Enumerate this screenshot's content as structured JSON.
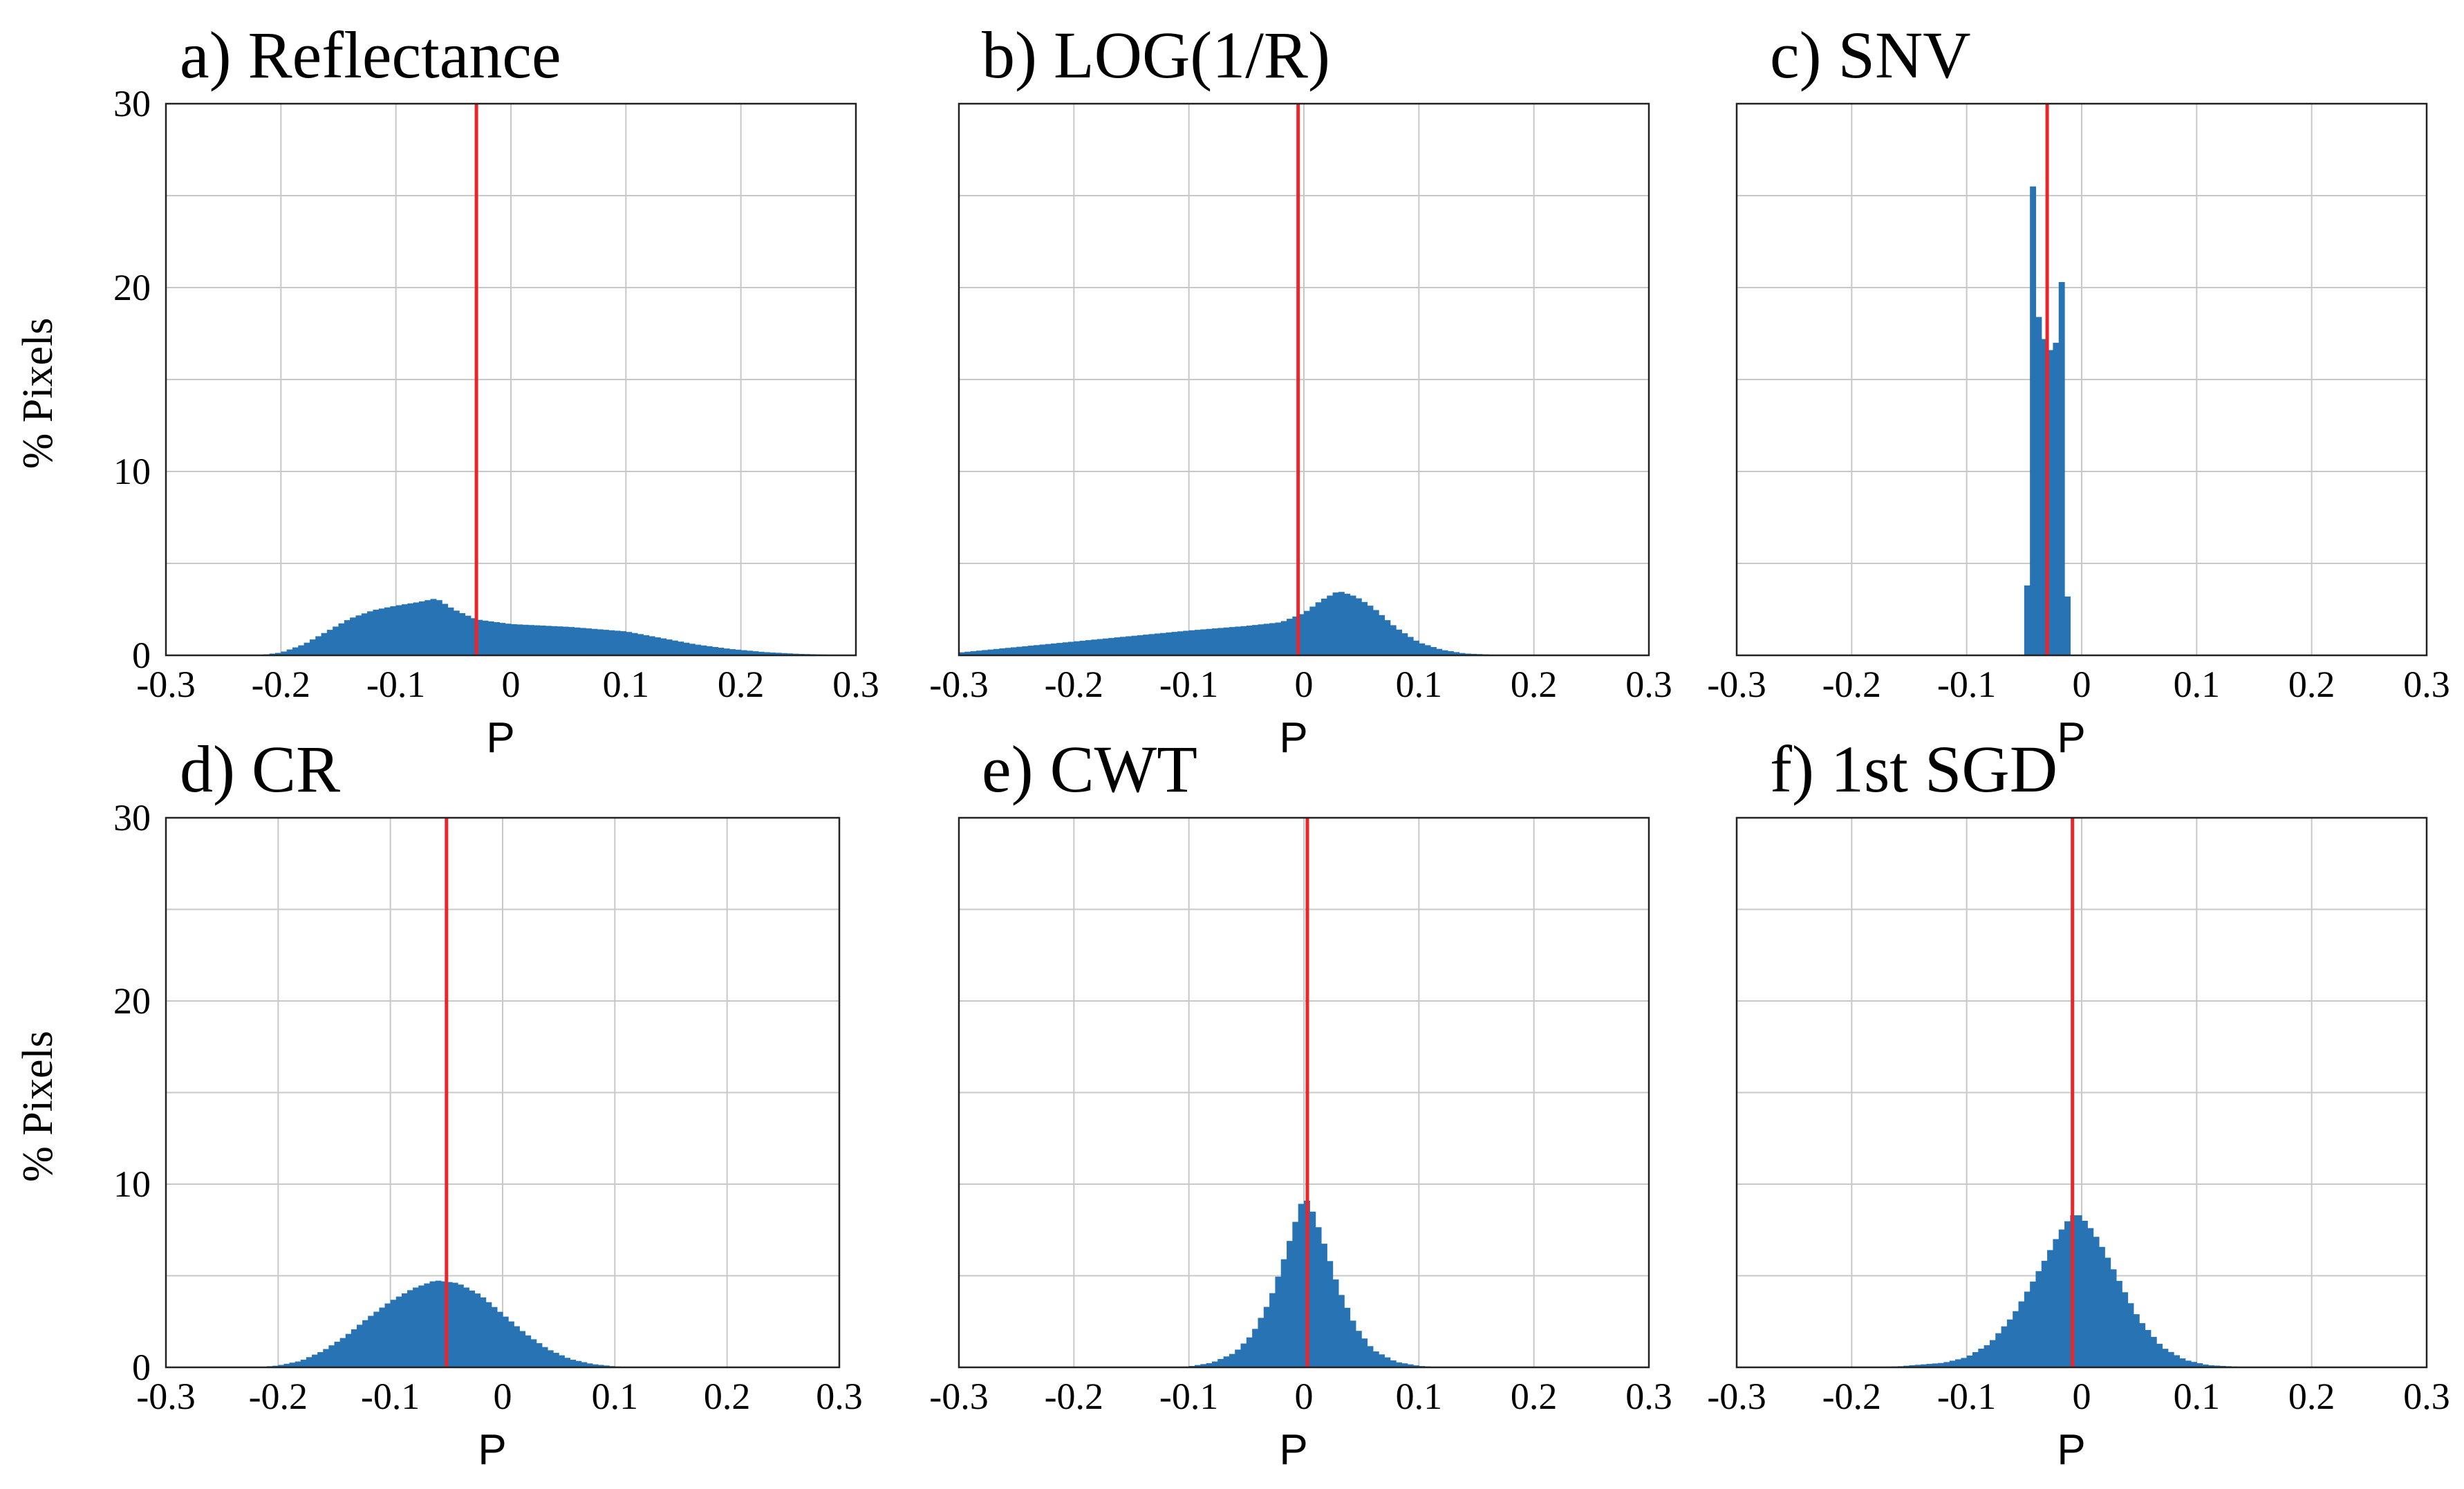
{
  "colors": {
    "bar": "#2873b4",
    "refline": "#e8262b",
    "grid": "#c8c8c8"
  },
  "chart_data": [
    {
      "type": "bar",
      "title": "a) Reflectance",
      "xlabel": "P",
      "ylabel": "% Pixels",
      "xlim": [
        -0.3,
        0.3
      ],
      "ylim": [
        0,
        30
      ],
      "xticks": [
        "-0.3",
        "-0.2",
        "-0.1",
        "0",
        "0.1",
        "0.2",
        "0.3"
      ],
      "yticks": [
        "0",
        "10",
        "20",
        "30"
      ],
      "show_yticks": true,
      "bin_width": 0.005,
      "refline_x": -0.03,
      "profile": [
        [
          -0.22,
          0
        ],
        [
          -0.2,
          0.15
        ],
        [
          -0.18,
          0.6
        ],
        [
          -0.16,
          1.3
        ],
        [
          -0.14,
          2.0
        ],
        [
          -0.12,
          2.45
        ],
        [
          -0.1,
          2.7
        ],
        [
          -0.08,
          2.9
        ],
        [
          -0.065,
          3.1
        ],
        [
          -0.05,
          2.5
        ],
        [
          -0.03,
          1.95
        ],
        [
          0.0,
          1.7
        ],
        [
          0.05,
          1.55
        ],
        [
          0.1,
          1.3
        ],
        [
          0.13,
          0.95
        ],
        [
          0.16,
          0.6
        ],
        [
          0.19,
          0.35
        ],
        [
          0.22,
          0.18
        ],
        [
          0.25,
          0.08
        ],
        [
          0.28,
          0.03
        ],
        [
          0.3,
          0.01
        ]
      ]
    },
    {
      "type": "bar",
      "title": "b) LOG(1/R)",
      "xlabel": "P",
      "ylabel": "",
      "xlim": [
        -0.3,
        0.3
      ],
      "ylim": [
        0,
        30
      ],
      "xticks": [
        "-0.3",
        "-0.2",
        "-0.1",
        "0",
        "0.1",
        "0.2",
        "0.3"
      ],
      "yticks": [
        "0",
        "10",
        "20",
        "30"
      ],
      "show_yticks": false,
      "bin_width": 0.005,
      "refline_x": -0.005,
      "profile": [
        [
          -0.3,
          0.15
        ],
        [
          -0.25,
          0.45
        ],
        [
          -0.2,
          0.75
        ],
        [
          -0.15,
          1.05
        ],
        [
          -0.1,
          1.35
        ],
        [
          -0.05,
          1.6
        ],
        [
          -0.02,
          1.8
        ],
        [
          0.0,
          2.3
        ],
        [
          0.015,
          3.0
        ],
        [
          0.03,
          3.5
        ],
        [
          0.045,
          3.2
        ],
        [
          0.06,
          2.6
        ],
        [
          0.08,
          1.5
        ],
        [
          0.1,
          0.7
        ],
        [
          0.12,
          0.3
        ],
        [
          0.14,
          0.1
        ],
        [
          0.17,
          0.02
        ],
        [
          0.2,
          0
        ]
      ]
    },
    {
      "type": "bar",
      "title": "c) SNV",
      "xlabel": "P",
      "ylabel": "",
      "xlim": [
        -0.3,
        0.3
      ],
      "ylim": [
        0,
        30
      ],
      "xticks": [
        "-0.3",
        "-0.2",
        "-0.1",
        "0",
        "0.1",
        "0.2",
        "0.3"
      ],
      "yticks": [
        "0",
        "10",
        "20",
        "30"
      ],
      "show_yticks": false,
      "bin_width": 0.005,
      "refline_x": -0.03,
      "bins": [
        {
          "x0": -0.05,
          "x1": -0.045,
          "y": 3.8
        },
        {
          "x0": -0.045,
          "x1": -0.04,
          "y": 25.5
        },
        {
          "x0": -0.04,
          "x1": -0.035,
          "y": 18.4
        },
        {
          "x0": -0.035,
          "x1": -0.03,
          "y": 17.2
        },
        {
          "x0": -0.03,
          "x1": -0.025,
          "y": 16.6
        },
        {
          "x0": -0.025,
          "x1": -0.02,
          "y": 17.0
        },
        {
          "x0": -0.02,
          "x1": -0.015,
          "y": 20.3
        },
        {
          "x0": -0.015,
          "x1": -0.01,
          "y": 3.2
        }
      ]
    },
    {
      "type": "bar",
      "title": "d) CR",
      "xlabel": "P",
      "ylabel": "% Pixels",
      "xlim": [
        -0.3,
        0.3
      ],
      "ylim": [
        0,
        30
      ],
      "xticks": [
        "-0.3",
        "-0.2",
        "-0.1",
        "0",
        "0.1",
        "0.2",
        "0.3"
      ],
      "yticks": [
        "0",
        "10",
        "20",
        "30"
      ],
      "show_yticks": true,
      "bin_width": 0.005,
      "refline_x": -0.05,
      "profile": [
        [
          -0.22,
          0
        ],
        [
          -0.2,
          0.1
        ],
        [
          -0.18,
          0.35
        ],
        [
          -0.16,
          0.9
        ],
        [
          -0.14,
          1.7
        ],
        [
          -0.12,
          2.7
        ],
        [
          -0.1,
          3.6
        ],
        [
          -0.08,
          4.3
        ],
        [
          -0.06,
          4.75
        ],
        [
          -0.04,
          4.6
        ],
        [
          -0.02,
          3.95
        ],
        [
          0.0,
          2.9
        ],
        [
          0.02,
          1.85
        ],
        [
          0.04,
          1.0
        ],
        [
          0.06,
          0.45
        ],
        [
          0.08,
          0.18
        ],
        [
          0.1,
          0.05
        ],
        [
          0.13,
          0
        ]
      ]
    },
    {
      "type": "bar",
      "title": "e) CWT",
      "xlabel": "P",
      "ylabel": "",
      "xlim": [
        -0.3,
        0.3
      ],
      "ylim": [
        0,
        30
      ],
      "xticks": [
        "-0.3",
        "-0.2",
        "-0.1",
        "0",
        "0.1",
        "0.2",
        "0.3"
      ],
      "yticks": [
        "0",
        "10",
        "20",
        "30"
      ],
      "show_yticks": false,
      "bin_width": 0.005,
      "refline_x": 0.003,
      "profile": [
        [
          -0.12,
          0
        ],
        [
          -0.1,
          0.05
        ],
        [
          -0.08,
          0.25
        ],
        [
          -0.06,
          0.8
        ],
        [
          -0.045,
          1.8
        ],
        [
          -0.03,
          3.6
        ],
        [
          -0.02,
          5.4
        ],
        [
          -0.01,
          7.4
        ],
        [
          -0.004,
          8.7
        ],
        [
          0.0,
          9.3
        ],
        [
          0.005,
          8.9
        ],
        [
          0.01,
          8.1
        ],
        [
          0.02,
          6.3
        ],
        [
          0.03,
          4.3
        ],
        [
          0.045,
          2.2
        ],
        [
          0.06,
          0.95
        ],
        [
          0.08,
          0.3
        ],
        [
          0.1,
          0.08
        ],
        [
          0.12,
          0
        ]
      ]
    },
    {
      "type": "bar",
      "title": "f) 1st SGD",
      "xlabel": "P",
      "ylabel": "",
      "xlim": [
        -0.3,
        0.3
      ],
      "ylim": [
        0,
        30
      ],
      "xticks": [
        "-0.3",
        "-0.2",
        "-0.1",
        "0",
        "0.1",
        "0.2",
        "0.3"
      ],
      "yticks": [
        "0",
        "10",
        "20",
        "30"
      ],
      "show_yticks": false,
      "bin_width": 0.005,
      "refline_x": -0.008,
      "profile": [
        [
          -0.2,
          0
        ],
        [
          -0.16,
          0.05
        ],
        [
          -0.12,
          0.25
        ],
        [
          -0.1,
          0.55
        ],
        [
          -0.08,
          1.3
        ],
        [
          -0.06,
          2.8
        ],
        [
          -0.045,
          4.4
        ],
        [
          -0.03,
          6.1
        ],
        [
          -0.02,
          7.3
        ],
        [
          -0.01,
          8.2
        ],
        [
          -0.005,
          8.4
        ],
        [
          0.0,
          8.2
        ],
        [
          0.01,
          7.4
        ],
        [
          0.02,
          6.3
        ],
        [
          0.035,
          4.4
        ],
        [
          0.05,
          2.6
        ],
        [
          0.07,
          1.1
        ],
        [
          0.09,
          0.4
        ],
        [
          0.11,
          0.12
        ],
        [
          0.14,
          0.02
        ],
        [
          0.16,
          0
        ]
      ]
    }
  ]
}
